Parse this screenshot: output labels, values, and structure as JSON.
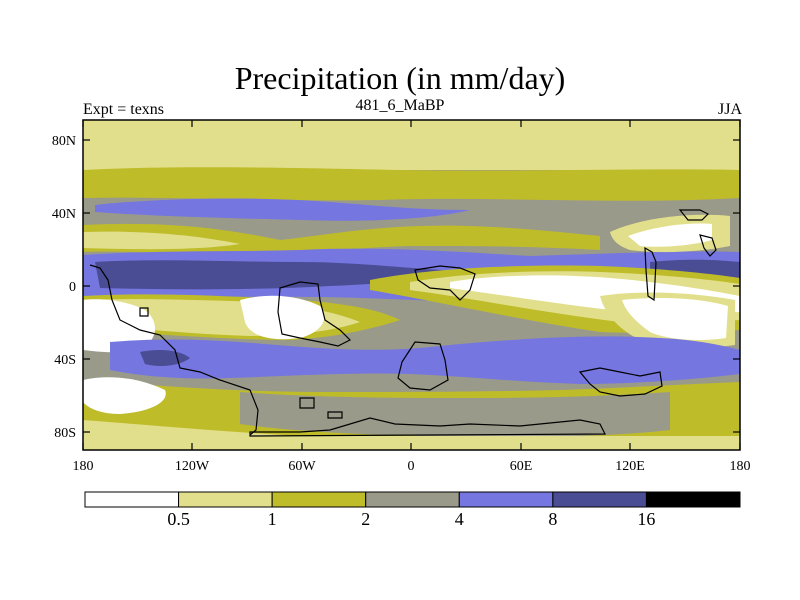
{
  "title": "Precipitation (in mm/day)",
  "subtitle_left": "Expt = texns",
  "subtitle_center": "481_6_MaBP",
  "subtitle_right": "JJA",
  "lat_ticks": [
    "80N",
    "40N",
    "0",
    "40S",
    "80S"
  ],
  "lon_ticks": [
    "180",
    "120W",
    "60W",
    "0",
    "60E",
    "120E",
    "180"
  ],
  "chart_data": {
    "type": "heatmap",
    "title": "Precipitation (in mm/day)",
    "variable": "Precipitation",
    "units": "mm/day",
    "season": "JJA",
    "experiment": "texns",
    "case": "481_6_MaBP",
    "x_range": [
      -180,
      180
    ],
    "y_range": [
      -90,
      90
    ],
    "x_ticks": [
      -180,
      -120,
      -60,
      0,
      60,
      120,
      180
    ],
    "y_ticks": [
      80,
      40,
      0,
      -40,
      -80
    ],
    "levels": [
      0.5,
      1,
      2,
      4,
      8,
      16
    ],
    "level_labels": [
      "0.5",
      "1",
      "2",
      "4",
      "8",
      "16"
    ],
    "colors": [
      "#ffffff",
      "#e2df8c",
      "#bfbc29",
      "#9a9a8a",
      "#7576e0",
      "#4a4c94",
      "#000000"
    ]
  }
}
